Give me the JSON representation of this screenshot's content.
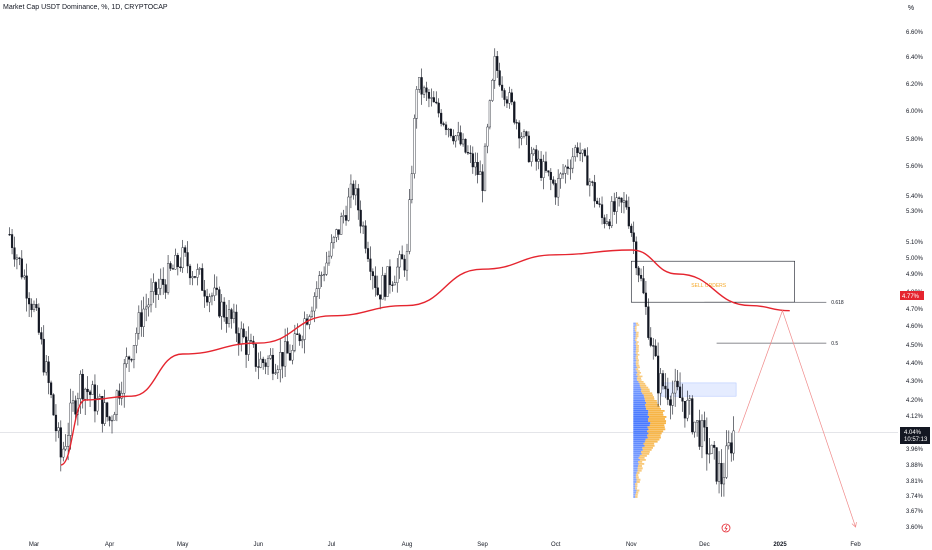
{
  "header": {
    "title": "Market Cap USDT Dominance, %, 1D, CRYPTOCAP",
    "percent_button": "%"
  },
  "colors": {
    "candle": "#131722",
    "ma_line": "#e5252f",
    "projection": "#f08a8a",
    "vp_blue": "#2962ff",
    "vp_yellow": "#f5a623",
    "grid": "#c9ccd4",
    "price_label_bg": "#131722",
    "ma_label_bg": "#e5252f",
    "sell_orders_text": "#f5a623"
  },
  "annotations": {
    "sell_orders": "SELL ORDERS",
    "fib_618": "0.618",
    "fib_5": "0.5",
    "current_price": "4.04%",
    "countdown": "10:57:13",
    "ma_value": "4.77%"
  },
  "chart_data": {
    "type": "candlestick",
    "title": "Market Cap USDT Dominance, %, 1D, CRYPTOCAP",
    "y_axis": {
      "ticks": [
        "6.60%",
        "6.40%",
        "6.20%",
        "6.00%",
        "5.80%",
        "5.60%",
        "5.40%",
        "5.30%",
        "5.10%",
        "5.00%",
        "4.90%",
        "4.80%",
        "4.70%",
        "4.60%",
        "4.50%",
        "4.40%",
        "4.30%",
        "4.20%",
        "4.12%",
        "3.96%",
        "3.88%",
        "3.81%",
        "3.74%",
        "3.67%",
        "3.60%"
      ],
      "range": [
        3.6,
        6.82
      ]
    },
    "x_axis": {
      "ticks": [
        "Mar",
        "Apr",
        "May",
        "Jun",
        "Jul",
        "Aug",
        "Sep",
        "Oct",
        "Nov",
        "Dec",
        "2025",
        "Feb"
      ]
    },
    "ohlc_approx": [
      {
        "date": "2024-02-20",
        "close": 5.15
      },
      {
        "date": "2024-03-01",
        "close": 4.7
      },
      {
        "date": "2024-03-12",
        "close": 3.92
      },
      {
        "date": "2024-03-20",
        "close": 4.3
      },
      {
        "date": "2024-04-01",
        "close": 4.1
      },
      {
        "date": "2024-04-15",
        "close": 4.7
      },
      {
        "date": "2024-05-01",
        "close": 5.0
      },
      {
        "date": "2024-05-20",
        "close": 4.65
      },
      {
        "date": "2024-06-01",
        "close": 4.4
      },
      {
        "date": "2024-06-15",
        "close": 4.45
      },
      {
        "date": "2024-07-01",
        "close": 5.05
      },
      {
        "date": "2024-07-10",
        "close": 5.45
      },
      {
        "date": "2024-07-20",
        "close": 4.8
      },
      {
        "date": "2024-08-01",
        "close": 5.0
      },
      {
        "date": "2024-08-05",
        "close": 6.2
      },
      {
        "date": "2024-08-20",
        "close": 5.85
      },
      {
        "date": "2024-09-01",
        "close": 5.5
      },
      {
        "date": "2024-09-06",
        "close": 6.35
      },
      {
        "date": "2024-09-20",
        "close": 5.7
      },
      {
        "date": "2024-10-01",
        "close": 5.45
      },
      {
        "date": "2024-10-10",
        "close": 5.75
      },
      {
        "date": "2024-10-20",
        "close": 5.25
      },
      {
        "date": "2024-10-30",
        "close": 5.35
      },
      {
        "date": "2024-11-05",
        "close": 4.85
      },
      {
        "date": "2024-11-12",
        "close": 4.3
      },
      {
        "date": "2024-11-22",
        "close": 4.2
      },
      {
        "date": "2024-12-01",
        "close": 4.0
      },
      {
        "date": "2024-12-08",
        "close": 3.82
      },
      {
        "date": "2024-12-13",
        "close": 4.04
      }
    ],
    "moving_average": [
      {
        "date": "2024-03-12",
        "value": 3.88
      },
      {
        "date": "2024-03-22",
        "value": 4.2
      },
      {
        "date": "2024-04-10",
        "value": 4.22
      },
      {
        "date": "2024-05-01",
        "value": 4.45
      },
      {
        "date": "2024-06-01",
        "value": 4.51
      },
      {
        "date": "2024-07-01",
        "value": 4.66
      },
      {
        "date": "2024-08-01",
        "value": 4.72
      },
      {
        "date": "2024-09-01",
        "value": 4.93
      },
      {
        "date": "2024-10-01",
        "value": 5.02
      },
      {
        "date": "2024-11-01",
        "value": 5.05
      },
      {
        "date": "2024-11-20",
        "value": 4.9
      },
      {
        "date": "2024-12-20",
        "value": 4.72
      },
      {
        "date": "2025-01-05",
        "value": 4.69
      }
    ],
    "projection": [
      {
        "date": "2024-12-15",
        "value": 4.04
      },
      {
        "date": "2025-01-02",
        "value": 4.69
      },
      {
        "date": "2025-02-01",
        "value": 3.6
      }
    ],
    "sell_orders_zone": {
      "from": "2024-11-01",
      "to": "2025-01-07",
      "low": 4.74,
      "high": 4.98
    },
    "fib_levels": [
      {
        "label": "0.618",
        "value": 4.74
      },
      {
        "label": "0.5",
        "value": 4.51
      }
    ],
    "last_price": 4.04
  }
}
